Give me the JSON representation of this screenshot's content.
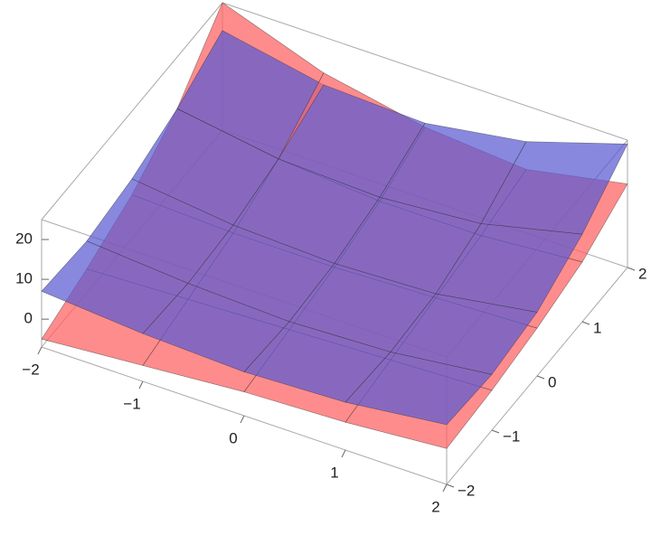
{
  "chart_data": {
    "type": "surface3d",
    "x": [
      -2,
      -1,
      0,
      1,
      2
    ],
    "y": [
      -2,
      -1,
      0,
      1,
      2
    ],
    "xlim": [
      -2,
      2
    ],
    "ylim": [
      -2,
      2
    ],
    "zlim": [
      -7,
      25
    ],
    "xticks": [
      {
        "value": -2,
        "label": "−2"
      },
      {
        "value": -1,
        "label": "−1"
      },
      0,
      1,
      2
    ],
    "yticks": [
      {
        "value": -2,
        "label": "−2"
      },
      {
        "value": -1,
        "label": "−1"
      },
      0,
      1,
      2
    ],
    "zticks": [
      0,
      10,
      20
    ],
    "series": [
      {
        "color": "#ff5f5f",
        "z": [
          [
            -5,
            -1,
            4,
            12,
            25
          ],
          [
            -3,
            0,
            3,
            8,
            16
          ],
          [
            -1,
            1,
            3,
            6,
            11
          ],
          [
            0,
            2,
            4,
            6,
            9
          ],
          [
            2,
            3,
            5,
            8,
            14
          ]
        ]
      },
      {
        "color": "#5a5ad2",
        "z": [
          [
            7,
            6,
            8,
            12,
            18
          ],
          [
            5,
            4,
            5,
            8,
            13
          ],
          [
            4,
            3,
            4,
            7,
            12
          ],
          [
            5,
            4,
            5,
            9,
            16
          ],
          [
            8,
            7,
            9,
            15,
            24
          ]
        ]
      }
    ]
  }
}
